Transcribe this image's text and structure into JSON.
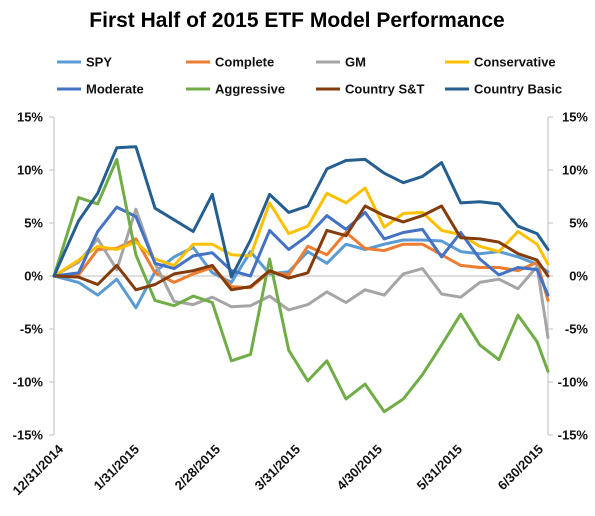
{
  "chart_data": {
    "type": "line",
    "title": "First Half of 2015 ETF Model Performance",
    "xlabel": "",
    "ylabel": "",
    "ylim": [
      -15,
      15
    ],
    "y_ticks": [
      15,
      10,
      5,
      0,
      -5,
      -10,
      -15
    ],
    "y_tick_labels": [
      "15%",
      "10%",
      "5%",
      "0%",
      "-5%",
      "-10%",
      "-15%"
    ],
    "x_tick_labels": [
      "12/31/2014",
      "1/31/2015",
      "2/28/2015",
      "3/31/2015",
      "4/30/2015",
      "5/31/2015",
      "6/30/2015"
    ],
    "x": [
      "2014-12-31",
      "2015-01-09",
      "2015-01-16",
      "2015-01-23",
      "2015-01-30",
      "2015-02-06",
      "2015-02-13",
      "2015-02-20",
      "2015-02-27",
      "2015-03-06",
      "2015-03-13",
      "2015-03-20",
      "2015-03-27",
      "2015-04-03",
      "2015-04-10",
      "2015-04-17",
      "2015-04-24",
      "2015-05-01",
      "2015-05-08",
      "2015-05-15",
      "2015-05-22",
      "2015-05-29",
      "2015-06-05",
      "2015-06-12",
      "2015-06-19",
      "2015-06-26",
      "2015-06-30"
    ],
    "legend_position": "top",
    "grid": false,
    "series": [
      {
        "name": "SPY",
        "color": "#5b9bd5",
        "values": [
          0,
          -0.6,
          -1.8,
          -0.3,
          -3.0,
          0.4,
          1.8,
          2.7,
          0.3,
          -0.6,
          2.3,
          0.2,
          0.4,
          2.3,
          1.2,
          3.0,
          2.5,
          3.0,
          3.4,
          3.4,
          3.3,
          2.3,
          2.1,
          2.3,
          1.8,
          1.1,
          0.4
        ]
      },
      {
        "name": "Complete",
        "color": "#ed7d31",
        "values": [
          0,
          0.1,
          2.5,
          2.6,
          3.5,
          0.3,
          -0.6,
          0.2,
          0.8,
          -1.0,
          -1.1,
          0.4,
          0.1,
          2.8,
          2.0,
          4.1,
          2.6,
          2.4,
          3.0,
          3.0,
          2.0,
          1.0,
          0.8,
          0.8,
          0.5,
          1.3,
          -2.3
        ]
      },
      {
        "name": "GM",
        "color": "#a5a5a5",
        "values": [
          0,
          1.3,
          3.5,
          0.6,
          6.3,
          1.2,
          -2.4,
          -2.7,
          -2.0,
          -2.9,
          -2.8,
          -1.9,
          -3.2,
          -2.7,
          -1.5,
          -2.5,
          -1.3,
          -1.8,
          0.2,
          0.7,
          -1.7,
          -2.0,
          -0.6,
          -0.3,
          -1.2,
          0.9,
          -5.8
        ]
      },
      {
        "name": "Conservative",
        "color": "#ffc000",
        "values": [
          0,
          1.5,
          2.8,
          2.5,
          3.2,
          1.6,
          1.0,
          3.0,
          3.0,
          2.0,
          1.9,
          6.9,
          4.0,
          4.7,
          7.8,
          6.9,
          8.3,
          4.6,
          5.9,
          6.0,
          4.3,
          3.9,
          2.8,
          2.3,
          4.2,
          3.0,
          1.1
        ]
      },
      {
        "name": "Moderate",
        "color": "#4472c4",
        "values": [
          0,
          0.3,
          4.2,
          6.5,
          5.6,
          1.2,
          0.7,
          1.9,
          2.2,
          0.5,
          0.0,
          4.3,
          2.5,
          3.8,
          5.7,
          4.4,
          6.0,
          3.5,
          4.1,
          4.4,
          1.8,
          4.1,
          1.6,
          0.1,
          0.8,
          0.6,
          -1.8
        ]
      },
      {
        "name": "Aggressive",
        "color": "#70ad47",
        "values": [
          0,
          7.4,
          6.8,
          11.0,
          2.0,
          -2.3,
          -2.8,
          -1.9,
          -2.5,
          -8.0,
          -7.4,
          1.6,
          -7.0,
          -9.9,
          -8.0,
          -11.6,
          -10.2,
          -12.8,
          -11.6,
          -9.3,
          -6.5,
          -3.6,
          -6.5,
          -7.9,
          -3.7,
          -6.2,
          -9.0
        ]
      },
      {
        "name": "Country S&T",
        "color": "#843c0c",
        "values": [
          0,
          -0.1,
          -0.8,
          1.0,
          -1.3,
          -0.8,
          0.2,
          0.5,
          1.0,
          -1.3,
          -1.0,
          0.5,
          -0.2,
          0.3,
          4.3,
          3.8,
          6.6,
          5.7,
          5.1,
          5.7,
          6.6,
          3.6,
          3.5,
          3.2,
          2.1,
          1.5,
          0.0
        ]
      },
      {
        "name": "Country Basic",
        "color": "#255e91",
        "values": [
          0,
          5.2,
          7.8,
          12.1,
          12.2,
          6.4,
          5.3,
          4.2,
          7.7,
          -0.1,
          3.4,
          7.7,
          6.0,
          6.6,
          10.1,
          10.9,
          11.0,
          9.7,
          8.8,
          9.4,
          10.7,
          6.9,
          7.0,
          6.8,
          4.7,
          4.0,
          2.5
        ]
      }
    ]
  }
}
